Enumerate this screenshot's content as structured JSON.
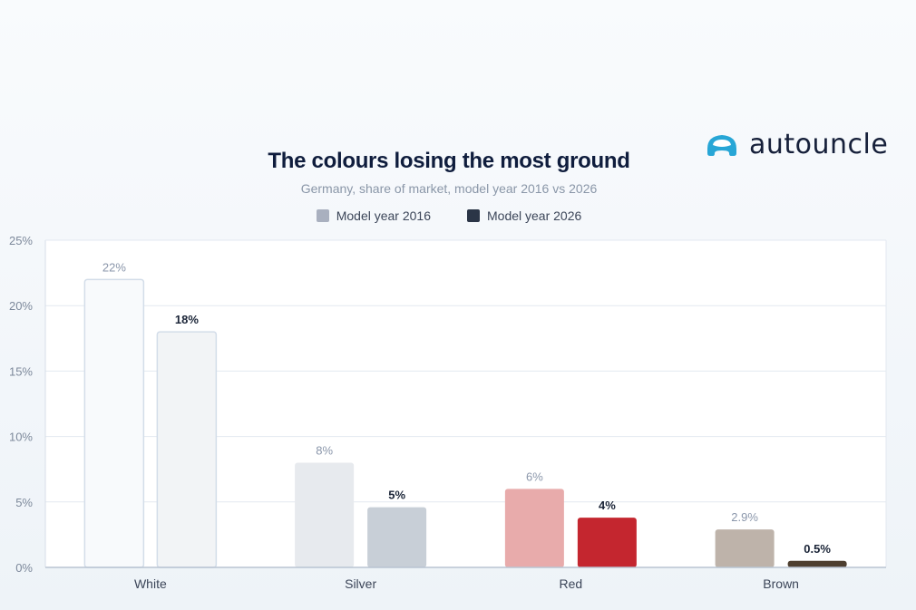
{
  "brand": {
    "name": "autouncle",
    "logo_color": "#27a6d6"
  },
  "chart_data": {
    "type": "bar",
    "title": "The colours losing the most ground",
    "subtitle": "Germany, share of market, model year 2016 vs 2026",
    "categories": [
      "White",
      "Silver",
      "Red",
      "Brown"
    ],
    "series": [
      {
        "name": "Model year 2016",
        "values": [
          22,
          8,
          6,
          2.9
        ],
        "labels": [
          "22%",
          "8%",
          "6%",
          "2.9%"
        ],
        "legend_color": "#a9b0bf",
        "colors": [
          "#f8fafc",
          "#e7eaee",
          "#e8abab",
          "#beb3aa"
        ],
        "border_colors": [
          "#d3dde9",
          null,
          null,
          null
        ]
      },
      {
        "name": "Model year 2026",
        "values": [
          18,
          4.6,
          3.8,
          0.5
        ],
        "labels": [
          "18%",
          "5%",
          "4%",
          "0.5%"
        ],
        "legend_color": "#2b3547",
        "colors": [
          "#f2f4f6",
          "#c8cfd7",
          "#c4262f",
          "#4e3f30"
        ],
        "border_colors": [
          "#d3dde9",
          null,
          null,
          null
        ]
      }
    ],
    "yticks": [
      "0%",
      "5%",
      "10%",
      "15%",
      "20%",
      "25%"
    ],
    "ylim": [
      0,
      25
    ],
    "grid": true,
    "legend_position": "top-center"
  }
}
